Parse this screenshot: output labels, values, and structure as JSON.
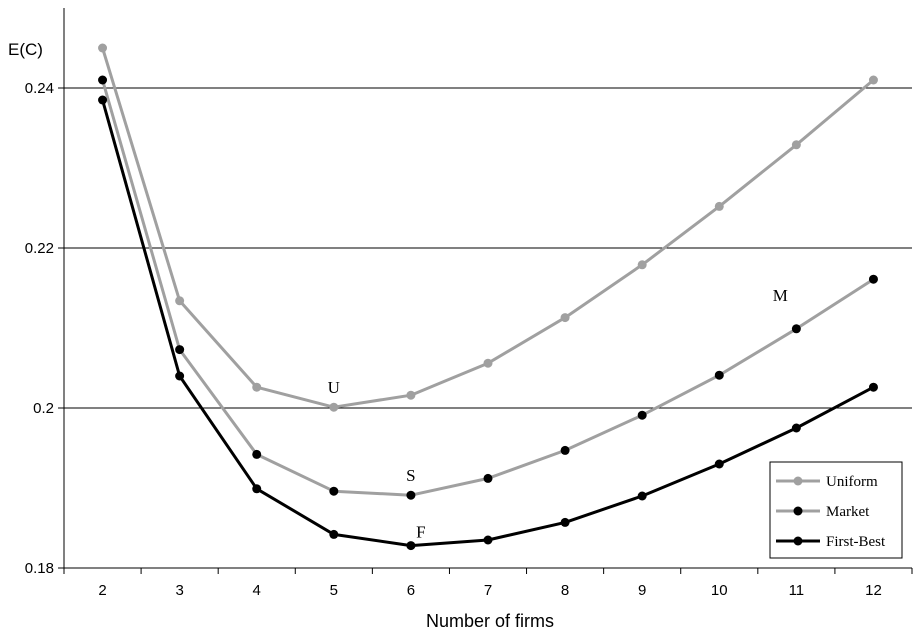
{
  "chart_data": {
    "type": "line",
    "ylabel": "E(C)",
    "xlabel": "Number of firms",
    "x": [
      2,
      3,
      4,
      5,
      6,
      7,
      8,
      9,
      10,
      11,
      12
    ],
    "ylim": [
      0.18,
      0.25
    ],
    "y_ticks": [
      "0.18",
      "0.2",
      "0.22",
      "0.24"
    ],
    "y_tick_values": [
      0.18,
      0.2,
      0.22,
      0.24
    ],
    "grid": "horizontal",
    "legend_position": "bottom-right",
    "series": [
      {
        "name": "Uniform",
        "color": "#a0a0a0",
        "values": [
          0.245,
          0.2134,
          0.2026,
          0.2001,
          0.2016,
          0.2056,
          0.2113,
          0.2179,
          0.2252,
          0.2329,
          0.241
        ]
      },
      {
        "name": "Market",
        "color": "#a0a0a0",
        "values": [
          0.241,
          0.2073,
          0.1942,
          0.1896,
          0.1891,
          0.1912,
          0.1947,
          0.1991,
          0.2041,
          0.2099,
          0.2161
        ]
      },
      {
        "name": "First-Best",
        "color": "#000000",
        "values": [
          0.2385,
          0.204,
          0.1899,
          0.1842,
          0.1828,
          0.1835,
          0.1857,
          0.189,
          0.193,
          0.1975,
          0.2026
        ]
      }
    ],
    "annotations": [
      {
        "text": "U",
        "x": 5,
        "y": 0.2001
      },
      {
        "text": "S",
        "x": 6,
        "y": 0.1891
      },
      {
        "text": "F",
        "x": 6,
        "y": 0.1828
      },
      {
        "text": "M",
        "x": 11,
        "y": 0.2099
      }
    ]
  }
}
